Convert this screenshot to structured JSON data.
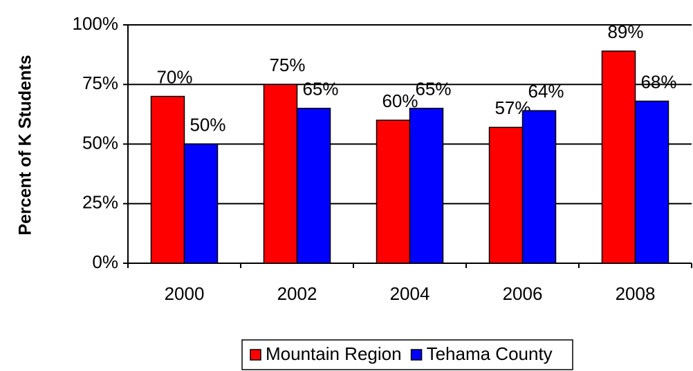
{
  "chart_data": {
    "type": "bar",
    "y_axis_label": "Percent of K Students",
    "categories": [
      "2000",
      "2002",
      "2004",
      "2006",
      "2008"
    ],
    "series": [
      {
        "name": "Mountain Region",
        "color": "#ff0000",
        "values": [
          70,
          75,
          60,
          57,
          89
        ],
        "value_labels": [
          "70%",
          "75%",
          "60%",
          "57%",
          "89%"
        ]
      },
      {
        "name": "Tehama County",
        "color": "#0000ff",
        "values": [
          50,
          65,
          65,
          64,
          68
        ],
        "value_labels": [
          "50%",
          "65%",
          "65%",
          "64%",
          "68%"
        ]
      }
    ],
    "ylim": [
      0,
      100
    ],
    "yticks": [
      {
        "value": 0,
        "label": "0%"
      },
      {
        "value": 25,
        "label": "25%"
      },
      {
        "value": 50,
        "label": "50%"
      },
      {
        "value": 75,
        "label": "75%"
      },
      {
        "value": 100,
        "label": "100%"
      }
    ],
    "grid": true,
    "legend": "bottom"
  }
}
